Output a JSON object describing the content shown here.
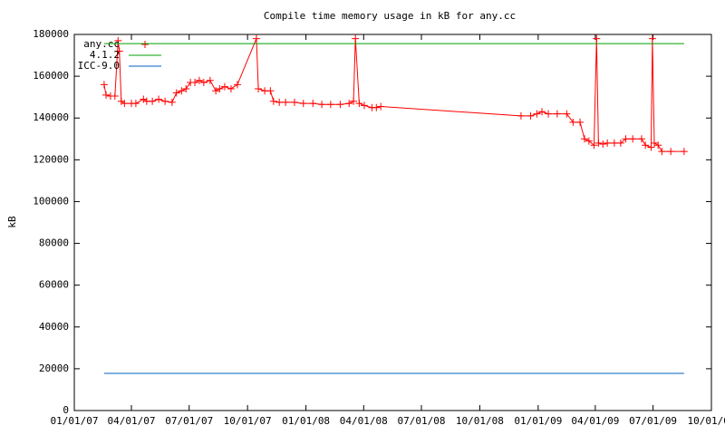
{
  "chart_data": {
    "type": "line",
    "title": "Compile time memory usage in kB for any.cc",
    "y_label": "kB",
    "xlim": [
      0,
      1004
    ],
    "xticks": [
      {
        "value": 0,
        "label": "01/01/07"
      },
      {
        "value": 90,
        "label": "04/01/07"
      },
      {
        "value": 181,
        "label": "07/01/07"
      },
      {
        "value": 273,
        "label": "10/01/07"
      },
      {
        "value": 365,
        "label": "01/01/08"
      },
      {
        "value": 456,
        "label": "04/01/08"
      },
      {
        "value": 547,
        "label": "07/01/08"
      },
      {
        "value": 639,
        "label": "10/01/08"
      },
      {
        "value": 731,
        "label": "01/01/09"
      },
      {
        "value": 821,
        "label": "04/01/09"
      },
      {
        "value": 912,
        "label": "07/01/09"
      },
      {
        "value": 1004,
        "label": "10/01/09"
      }
    ],
    "ylim": [
      0,
      180000
    ],
    "yticks": [
      0,
      20000,
      40000,
      60000,
      80000,
      100000,
      120000,
      140000,
      160000,
      180000
    ],
    "legend": "top-left",
    "series": [
      {
        "name": "any.cc",
        "color": "#ff0000",
        "markers": true,
        "x": [
          47,
          50,
          57,
          64,
          69,
          71,
          74,
          79,
          90,
          97,
          109,
          114,
          123,
          133,
          143,
          154,
          161,
          169,
          176,
          183,
          190,
          197,
          204,
          214,
          223,
          229,
          237,
          247,
          257,
          287,
          290,
          300,
          309,
          314,
          323,
          333,
          347,
          361,
          376,
          390,
          404,
          419,
          433,
          440,
          443,
          449,
          457,
          469,
          476,
          483,
          704,
          719,
          729,
          737,
          747,
          761,
          776,
          786,
          797,
          804,
          811,
          819,
          823,
          826,
          833,
          840,
          851,
          861,
          869,
          880,
          894,
          900,
          909,
          911,
          914,
          920,
          926,
          940,
          961
        ],
        "values": [
          156000,
          151000,
          150500,
          150500,
          177000,
          172000,
          148000,
          147000,
          147000,
          147000,
          149000,
          148000,
          148000,
          149000,
          148000,
          147500,
          152000,
          153000,
          154000,
          157000,
          157000,
          158000,
          157000,
          158000,
          153000,
          154000,
          155000,
          154000,
          156000,
          178000,
          154000,
          153000,
          153000,
          148000,
          147500,
          147500,
          147500,
          147000,
          147000,
          146500,
          146500,
          146500,
          147000,
          148000,
          178000,
          147000,
          146000,
          145000,
          145000,
          145500,
          141000,
          141000,
          142000,
          143000,
          142000,
          142000,
          142000,
          138000,
          138000,
          130000,
          129000,
          127000,
          178000,
          128000,
          127500,
          128000,
          128000,
          128000,
          130000,
          130000,
          130000,
          127000,
          126000,
          178000,
          128000,
          127000,
          124000,
          124000,
          124000
        ]
      },
      {
        "name": "4.1.2",
        "color": "#00a000",
        "markers": false,
        "x": [
          47,
          961
        ],
        "values": [
          175600,
          175600
        ]
      },
      {
        "name": "ICC-9.0",
        "color": "#0060c0",
        "markers": false,
        "x": [
          47,
          961
        ],
        "values": [
          17800,
          17800
        ]
      }
    ]
  }
}
